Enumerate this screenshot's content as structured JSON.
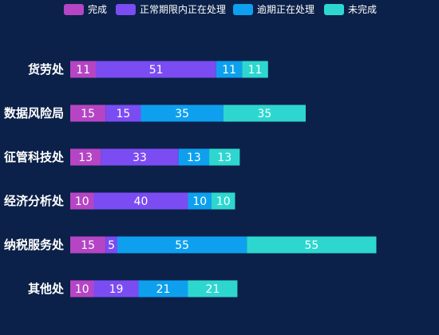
{
  "chart_data": {
    "type": "bar",
    "orientation": "horizontal",
    "stacked": true,
    "legend_position": "top",
    "grid": false,
    "categories": [
      "货劳处",
      "数据风险局",
      "征管科技处",
      "经济分析处",
      "纳税服务处",
      "其他处"
    ],
    "series": [
      {
        "name": "完成",
        "color": "#b545c4",
        "values": [
          11,
          15,
          13,
          10,
          15,
          10
        ]
      },
      {
        "name": "正常期限内正在处理",
        "color": "#7b4cf2",
        "values": [
          51,
          15,
          33,
          40,
          5,
          19
        ]
      },
      {
        "name": "逾期正在处理",
        "color": "#0ea0ee",
        "values": [
          11,
          35,
          13,
          10,
          55,
          21
        ]
      },
      {
        "name": "未完成",
        "color": "#2dd7cf",
        "values": [
          11,
          35,
          13,
          10,
          55,
          21
        ]
      }
    ]
  }
}
